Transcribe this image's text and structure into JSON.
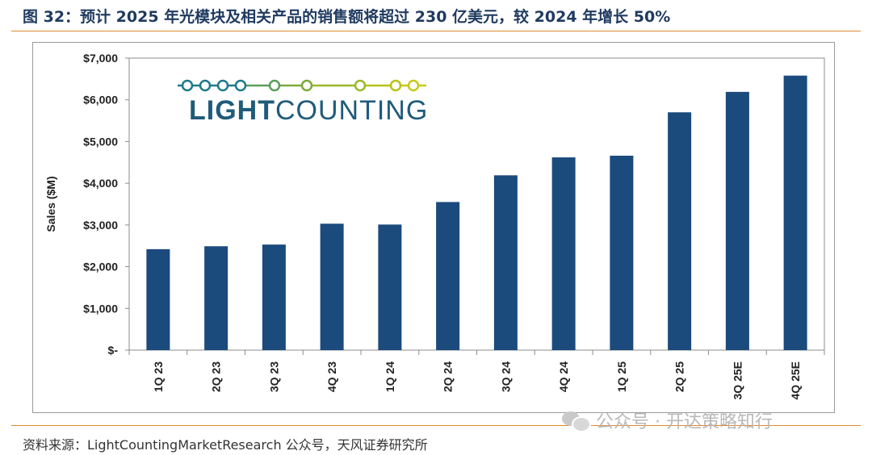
{
  "figure": {
    "title": "图 32：预计 2025 年光模块及相关产品的销售额将超过 230 亿美元，较 2024 年增长 50%",
    "source": "资料来源：LightCountingMarketResearch 公众号，天风证券研究所",
    "watermark": "公众号 · 开达策略知行"
  },
  "logo": {
    "text_bold": "LIGHT",
    "text_regular": "COUNTING",
    "colors": [
      "#1f7a8c",
      "#1f7a8c",
      "#1f7a8c",
      "#1f7a8c",
      "#5a9e5a",
      "#7aab3a",
      "#9ab82a",
      "#b8c21a",
      "#c8c81a"
    ]
  },
  "chart_data": {
    "type": "bar",
    "categories": [
      "1Q 23",
      "2Q 23",
      "3Q 23",
      "4Q 23",
      "1Q 24",
      "2Q 24",
      "3Q 24",
      "4Q 24",
      "1Q 25",
      "2Q 25",
      "3Q 25E",
      "4Q 25E"
    ],
    "values": [
      2420,
      2490,
      2530,
      3030,
      3010,
      3550,
      4190,
      4620,
      4660,
      5700,
      6190,
      6580
    ],
    "ylabel": "Sales ($M)",
    "ylim": [
      0,
      7000
    ],
    "yticks": [
      0,
      1000,
      2000,
      3000,
      4000,
      5000,
      6000,
      7000
    ],
    "ytick_labels": [
      "$-",
      "$1,000",
      "$2,000",
      "$3,000",
      "$4,000",
      "$5,000",
      "$6,000",
      "$7,000"
    ],
    "grid": false,
    "bar_color": "#1b4a7d"
  }
}
